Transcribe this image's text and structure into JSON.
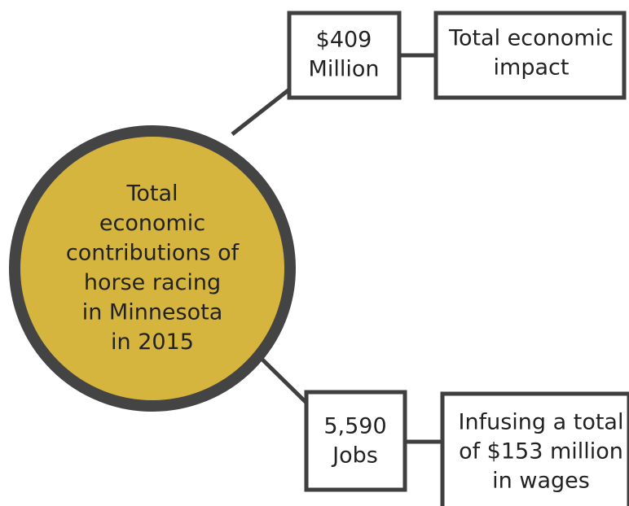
{
  "center": {
    "lines": [
      "Total",
      "economic",
      "contributions of",
      "horse racing",
      "in Minnesota",
      "in 2015"
    ]
  },
  "nodes": [
    {
      "value": {
        "lines": [
          "$409",
          "Million"
        ]
      },
      "label": {
        "lines": [
          "Total economic",
          "impact"
        ]
      }
    },
    {
      "value": {
        "lines": [
          "5,590",
          "Jobs"
        ]
      },
      "label": {
        "lines": [
          "Infusing a total",
          "of $153 million",
          "in wages"
        ]
      }
    }
  ]
}
